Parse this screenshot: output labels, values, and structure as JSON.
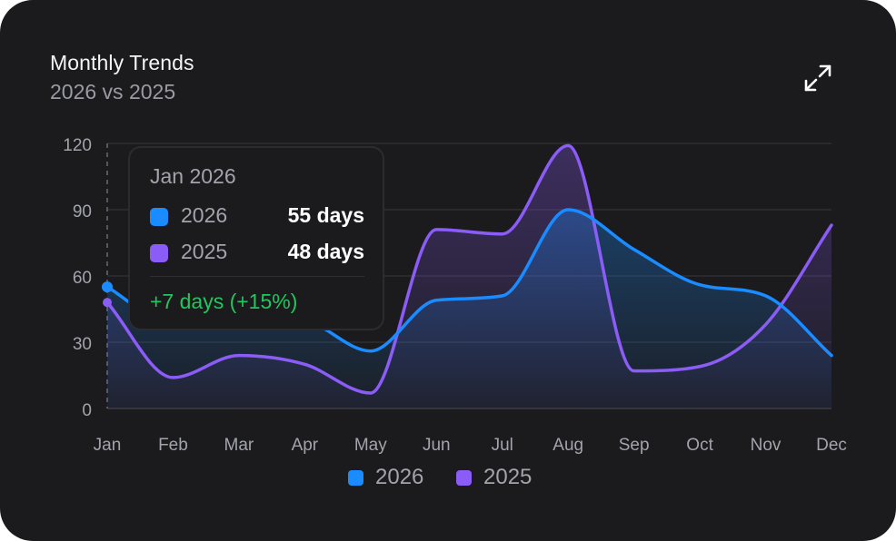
{
  "header": {
    "title": "Monthly Trends",
    "subtitle": "2026 vs 2025",
    "expand_icon": "expand-arrows-icon"
  },
  "colors": {
    "background": "#1b1b1e",
    "series_2026": "#1a8cff",
    "series_2025": "#8b5cf6",
    "positive": "#22c55e"
  },
  "tooltip": {
    "title": "Jan 2026",
    "rows": [
      {
        "name": "2026",
        "value": "55 days"
      },
      {
        "name": "2025",
        "value": "48 days"
      }
    ],
    "delta": "+7 days (+15%)"
  },
  "legend": [
    "2026",
    "2025"
  ],
  "chart_data": {
    "type": "area",
    "categories": [
      "Jan",
      "Feb",
      "Mar",
      "Apr",
      "May",
      "Jun",
      "Jul",
      "Aug",
      "Sep",
      "Oct",
      "Nov",
      "Dec"
    ],
    "series": [
      {
        "name": "2026",
        "values": [
          55,
          38,
          42,
          40,
          26,
          49,
          51,
          90,
          72,
          56,
          51,
          24
        ]
      },
      {
        "name": "2025",
        "values": [
          48,
          14,
          24,
          20,
          7,
          81,
          79,
          119,
          17,
          19,
          38,
          83
        ]
      }
    ],
    "yticks": [
      0,
      30,
      60,
      90,
      120
    ],
    "ylim": [
      0,
      120
    ],
    "grid": true,
    "legend_position": "bottom-center",
    "highlighted_category": "Jan"
  }
}
